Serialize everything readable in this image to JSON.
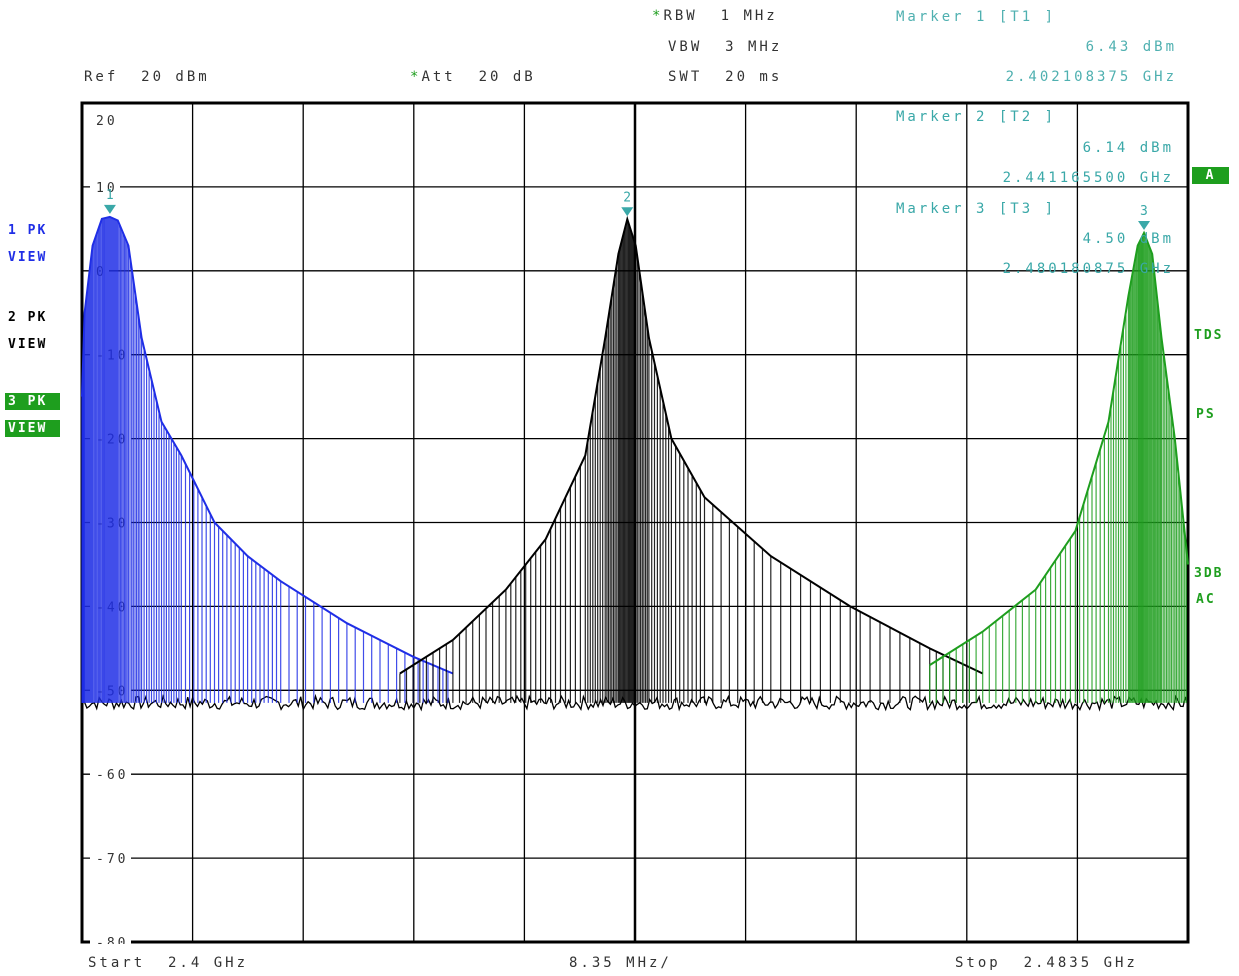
{
  "header": {
    "ref": "Ref  20 dBm",
    "att_star": "*",
    "att": "Att  20 dB",
    "rbw_star": "*",
    "rbw": "RBW  1 MHz",
    "vbw": "VBW  3 MHz",
    "swt": "SWT  20 ms"
  },
  "markers": [
    {
      "title": "Marker 1 [T1 ]",
      "level": "6.43 dBm",
      "freq": "2.402108375 GHz"
    },
    {
      "title": "Marker 2 [T2 ]",
      "level": "6.14 dBm",
      "freq": "2.441165500 GHz"
    },
    {
      "title": "Marker 3 [T3 ]",
      "level": "4.50 dBm",
      "freq": "2.480180875 GHz"
    }
  ],
  "left_labels": {
    "t1_mode": "1 PK",
    "t1_view": "VIEW",
    "t2_mode": "2 PK",
    "t2_view": "VIEW",
    "t3_mode": "3 PK",
    "t3_view": "VIEW"
  },
  "right_labels": {
    "a_box": "A",
    "tds": "TDS",
    "ps": "PS",
    "db3": "3DB",
    "ac": "AC"
  },
  "footer": {
    "start": "Start  2.4 GHz",
    "span": "8.35 MHz/",
    "stop": "Stop  2.4835 GHz"
  },
  "colors": {
    "trace1": "#1f2ee6",
    "trace2": "#000000",
    "trace3": "#1e9e1e",
    "marker": "#3aa8a8",
    "grid": "#000000"
  },
  "chart_data": {
    "type": "line",
    "xlim": [
      2.4,
      2.4835
    ],
    "ylim": [
      -80,
      20
    ],
    "y_ticks": [
      20,
      10,
      0,
      -10,
      -20,
      -30,
      -40,
      -50,
      -60,
      -70,
      -80
    ],
    "y_tick_labels": [
      "20",
      "10",
      "0",
      "-10",
      "-20",
      "-30",
      "-40",
      "-50",
      "-60",
      "-70",
      "-80"
    ],
    "noise_floor_dbm": -51.5,
    "series": [
      {
        "name": "1 PK VIEW",
        "color": "#1f2ee6",
        "x": [
          2.4,
          2.4002,
          2.4008,
          2.4015,
          2.4021,
          2.4027,
          2.4035,
          2.4045,
          2.406,
          2.4075,
          2.41,
          2.4125,
          2.415,
          2.42,
          2.425,
          2.428
        ],
        "y": [
          -15,
          -5,
          3,
          6.2,
          6.43,
          6.0,
          3,
          -8,
          -18,
          -22,
          -30,
          -34,
          -37,
          -42,
          -46,
          -48
        ]
      },
      {
        "name": "2 PK VIEW",
        "color": "#000000",
        "x": [
          2.424,
          2.428,
          2.432,
          2.435,
          2.438,
          2.4395,
          2.4405,
          2.44117,
          2.4418,
          2.4428,
          2.4445,
          2.447,
          2.452,
          2.458,
          2.464,
          2.468
        ],
        "y": [
          -48,
          -44,
          -38,
          -32,
          -22,
          -8,
          2,
          6.14,
          3,
          -8,
          -20,
          -27,
          -34,
          -40,
          -45,
          -48
        ]
      },
      {
        "name": "3 PK VIEW",
        "color": "#1e9e1e",
        "x": [
          2.464,
          2.468,
          2.472,
          2.475,
          2.4775,
          2.479,
          2.4797,
          2.48018,
          2.4808,
          2.4815,
          2.4825,
          2.4835
        ],
        "y": [
          -47,
          -43,
          -38,
          -31,
          -18,
          -3,
          3,
          4.5,
          2,
          -8,
          -20,
          -35
        ]
      }
    ],
    "markers": [
      {
        "label": "1",
        "x": 2.402108375,
        "y": 6.43
      },
      {
        "label": "2",
        "x": 2.4411655,
        "y": 6.14
      },
      {
        "label": "3",
        "x": 2.480180875,
        "y": 4.5
      }
    ]
  }
}
